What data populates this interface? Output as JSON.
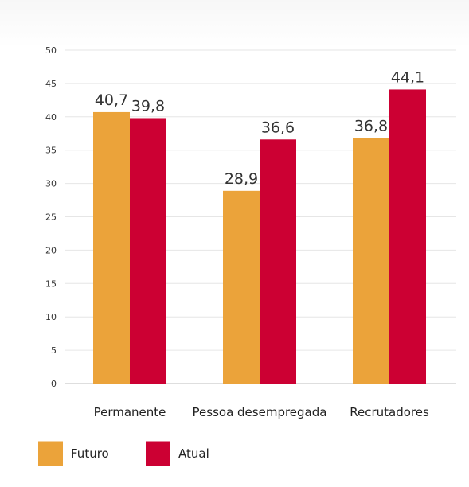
{
  "chart_data": {
    "type": "bar",
    "categories": [
      "Permanente",
      "Pessoa desempregada",
      "Recrutadores"
    ],
    "series": [
      {
        "name": "Futuro",
        "values": [
          40.7,
          28.9,
          36.8
        ],
        "value_labels": [
          "40,7",
          "28,9",
          "36,8"
        ],
        "color": "#EBA33A"
      },
      {
        "name": "Atual",
        "values": [
          39.8,
          36.6,
          44.1
        ],
        "value_labels": [
          "39,8",
          "36,6",
          "44,1"
        ],
        "color": "#CC0033"
      }
    ],
    "title": "",
    "xlabel": "",
    "ylabel": "",
    "ylim": [
      0,
      50
    ],
    "yticks": [
      "0",
      "5",
      "10",
      "15",
      "20",
      "25",
      "30",
      "35",
      "40",
      "45",
      "50"
    ],
    "grid": true,
    "legend_position": "bottom-left"
  }
}
